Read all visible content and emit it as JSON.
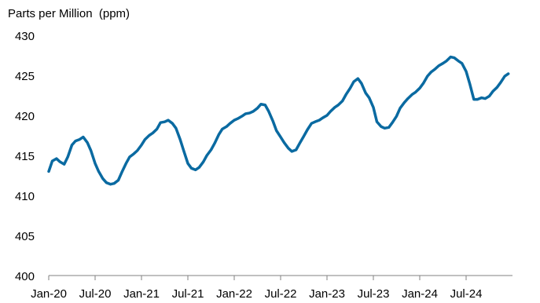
{
  "chart_data": {
    "type": "line",
    "title": "",
    "ylabel": "Parts per Million  (ppm)",
    "xlabel": "",
    "ylim": [
      400,
      430
    ],
    "yticks": [
      "400",
      "405",
      "410",
      "415",
      "420",
      "425",
      "430"
    ],
    "xticks": [
      "Jan-20",
      "Jul-20",
      "Jan-21",
      "Jul-21",
      "Jan-22",
      "Jul-22",
      "Jan-23",
      "Jul-23",
      "Jan-24",
      "Jul-24"
    ],
    "x_start": "Jan-20",
    "x_end": "Dec-24",
    "grid": false,
    "line_color": "#0a6aa1",
    "x": [
      "2020-01-01",
      "2020-01-15",
      "2020-02-01",
      "2020-02-15",
      "2020-03-01",
      "2020-03-15",
      "2020-04-01",
      "2020-04-15",
      "2020-05-01",
      "2020-05-15",
      "2020-06-01",
      "2020-06-15",
      "2020-07-01",
      "2020-07-15",
      "2020-08-01",
      "2020-08-15",
      "2020-09-01",
      "2020-09-15",
      "2020-10-01",
      "2020-10-15",
      "2020-11-01",
      "2020-11-15",
      "2020-12-01",
      "2020-12-15",
      "2021-01-01",
      "2021-01-15",
      "2021-02-01",
      "2021-02-15",
      "2021-03-01",
      "2021-03-15",
      "2021-04-01",
      "2021-04-15",
      "2021-05-01",
      "2021-05-15",
      "2021-06-01",
      "2021-06-15",
      "2021-07-01",
      "2021-07-15",
      "2021-08-01",
      "2021-08-15",
      "2021-09-01",
      "2021-09-15",
      "2021-10-01",
      "2021-10-15",
      "2021-11-01",
      "2021-11-15",
      "2021-12-01",
      "2021-12-15",
      "2022-01-01",
      "2022-01-15",
      "2022-02-01",
      "2022-02-15",
      "2022-03-01",
      "2022-03-15",
      "2022-04-01",
      "2022-04-15",
      "2022-05-01",
      "2022-05-15",
      "2022-06-01",
      "2022-06-15",
      "2022-07-01",
      "2022-07-15",
      "2022-08-01",
      "2022-08-15",
      "2022-09-01",
      "2022-09-15",
      "2022-10-01",
      "2022-10-15",
      "2022-11-01",
      "2022-11-15",
      "2022-12-01",
      "2022-12-15",
      "2023-01-01",
      "2023-01-15",
      "2023-02-01",
      "2023-02-15",
      "2023-03-01",
      "2023-03-15",
      "2023-04-01",
      "2023-04-15",
      "2023-05-01",
      "2023-05-15",
      "2023-06-01",
      "2023-06-15",
      "2023-07-01",
      "2023-07-15",
      "2023-08-01",
      "2023-08-15",
      "2023-09-01",
      "2023-09-15",
      "2023-10-01",
      "2023-10-15",
      "2023-11-01",
      "2023-11-15",
      "2023-12-01",
      "2023-12-15",
      "2024-01-01",
      "2024-01-15",
      "2024-02-01",
      "2024-02-15",
      "2024-03-01",
      "2024-03-15",
      "2024-04-01",
      "2024-04-15",
      "2024-05-01",
      "2024-05-15",
      "2024-06-01",
      "2024-06-15",
      "2024-07-01",
      "2024-07-15",
      "2024-08-01",
      "2024-08-15",
      "2024-09-01",
      "2024-09-15",
      "2024-10-01",
      "2024-10-15",
      "2024-11-01",
      "2024-11-15",
      "2024-12-01",
      "2024-12-15"
    ],
    "values": [
      413.0,
      414.3,
      414.6,
      414.2,
      413.9,
      414.8,
      416.3,
      416.8,
      417.0,
      417.3,
      416.6,
      415.6,
      414.0,
      413.0,
      412.1,
      411.6,
      411.4,
      411.5,
      411.9,
      412.9,
      414.0,
      414.8,
      415.2,
      415.6,
      416.3,
      417.0,
      417.5,
      417.8,
      418.3,
      419.1,
      419.2,
      419.4,
      419.0,
      418.4,
      417.0,
      415.6,
      414.0,
      413.4,
      413.2,
      413.5,
      414.2,
      415.0,
      415.7,
      416.5,
      417.6,
      418.3,
      418.6,
      419.0,
      419.4,
      419.6,
      419.9,
      420.2,
      420.3,
      420.5,
      420.9,
      421.4,
      421.3,
      420.5,
      419.3,
      418.1,
      417.3,
      416.6,
      415.9,
      415.5,
      415.7,
      416.5,
      417.4,
      418.2,
      419.0,
      419.2,
      419.4,
      419.7,
      420.0,
      420.5,
      421.0,
      421.3,
      421.8,
      422.6,
      423.4,
      424.2,
      424.6,
      424.0,
      422.8,
      422.2,
      421.0,
      419.2,
      418.6,
      418.4,
      418.5,
      419.1,
      419.9,
      420.9,
      421.6,
      422.1,
      422.6,
      422.9,
      423.4,
      424.0,
      424.9,
      425.4,
      425.8,
      426.2,
      426.5,
      426.8,
      427.3,
      427.2,
      426.8,
      426.5,
      425.5,
      424.0,
      422.0,
      422.0,
      422.2,
      422.1,
      422.4,
      423.0,
      423.5,
      424.1,
      424.9,
      425.2
    ]
  }
}
